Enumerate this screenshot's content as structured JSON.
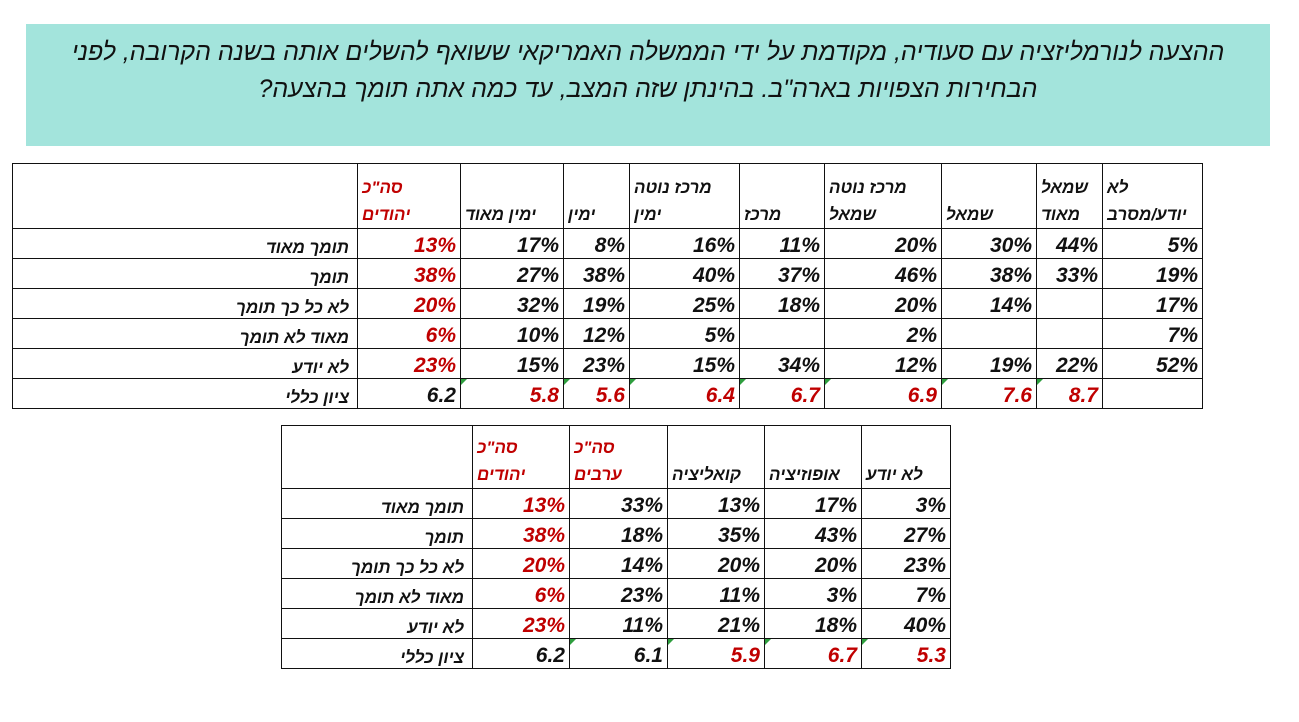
{
  "question": {
    "line1": "ההצעה לנורמליזציה עם סעודיה, מקודמת על ידי הממשלה האמריקאי ששואף להשלים אותה בשנה הקרובה, לפני",
    "line2": "הבחירות הצפויות בארה\"ב. בהינתן שזה המצב, עד כמה אתה תומך בהצעה?"
  },
  "table1": {
    "headers": [
      {
        "line1": "סה\"כ",
        "line2": "יהודים",
        "red": true
      },
      {
        "line1": "",
        "line2": "ימין מאוד"
      },
      {
        "line1": "",
        "line2": "ימין"
      },
      {
        "line1": "מרכז נוטה",
        "line2": "ימין"
      },
      {
        "line1": "",
        "line2": "מרכז"
      },
      {
        "line1": "מרכז נוטה",
        "line2": "שמאל"
      },
      {
        "line1": "",
        "line2": "שמאל"
      },
      {
        "line1": "שמאל",
        "line2": "מאוד"
      },
      {
        "line1": "לא",
        "line2": "יודע/מסרב"
      }
    ],
    "rows": [
      {
        "label": "תומך מאוד",
        "values": [
          "13%",
          "17%",
          "8%",
          "16%",
          "11%",
          "20%",
          "30%",
          "44%",
          "5%"
        ]
      },
      {
        "label": "תומך",
        "values": [
          "38%",
          "27%",
          "38%",
          "40%",
          "37%",
          "46%",
          "38%",
          "33%",
          "19%"
        ]
      },
      {
        "label": "לא כל כך תומך",
        "values": [
          "20%",
          "32%",
          "19%",
          "25%",
          "18%",
          "20%",
          "14%",
          "",
          "17%"
        ]
      },
      {
        "label": "מאוד לא תומך",
        "values": [
          "6%",
          "10%",
          "12%",
          "5%",
          "",
          "2%",
          "",
          "",
          "7%"
        ]
      },
      {
        "label": "לא יודע",
        "values": [
          "23%",
          "15%",
          "23%",
          "15%",
          "34%",
          "12%",
          "19%",
          "22%",
          "52%"
        ]
      },
      {
        "label": "ציון כללי",
        "values": [
          "6.2",
          "5.8",
          "5.6",
          "6.4",
          "6.7",
          "6.9",
          "7.6",
          "8.7",
          ""
        ]
      }
    ]
  },
  "table2": {
    "headers": [
      {
        "line1": "סה\"כ",
        "line2": "יהודים",
        "red": true
      },
      {
        "line1": "סה\"כ",
        "line2": "ערבים",
        "red": true
      },
      {
        "line1": "",
        "line2": "קואליציה"
      },
      {
        "line1": "",
        "line2": "אופוזיציה"
      },
      {
        "line1": "",
        "line2": "לא יודע"
      }
    ],
    "rows": [
      {
        "label": "תומך מאוד",
        "values": [
          "13%",
          "33%",
          "13%",
          "17%",
          "3%"
        ]
      },
      {
        "label": "תומך",
        "values": [
          "38%",
          "18%",
          "35%",
          "43%",
          "27%"
        ]
      },
      {
        "label": "לא כל כך תומך",
        "values": [
          "20%",
          "14%",
          "20%",
          "20%",
          "23%"
        ]
      },
      {
        "label": "מאוד לא תומך",
        "values": [
          "6%",
          "23%",
          "11%",
          "3%",
          "7%"
        ]
      },
      {
        "label": "לא יודע",
        "values": [
          "23%",
          "11%",
          "21%",
          "18%",
          "40%"
        ]
      },
      {
        "label": "ציון כללי",
        "values": [
          "6.2",
          "6.1",
          "5.9",
          "6.7",
          "5.3"
        ]
      }
    ]
  },
  "colors": {
    "question_background": "#a3e4dc",
    "accent_red": "#c00000",
    "score_marker_green": "#2e9e3e"
  }
}
